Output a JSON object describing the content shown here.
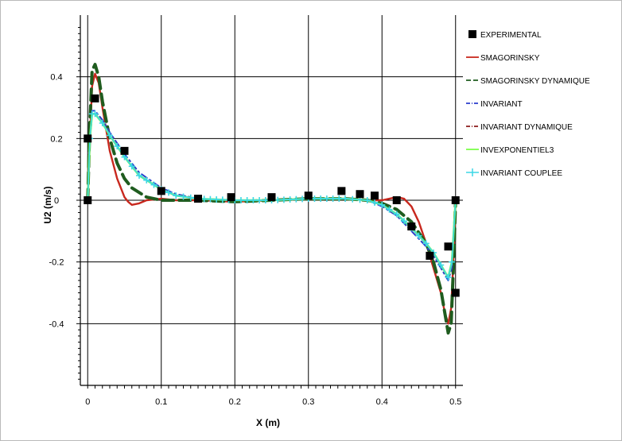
{
  "chart_data": {
    "type": "line",
    "xlabel": "X (m)",
    "ylabel": "U2 (m/s)",
    "xlim": [
      -0.01,
      0.51
    ],
    "ylim": [
      -0.6,
      0.6
    ],
    "x_ticks": [
      0,
      0.1,
      0.2,
      0.3,
      0.4,
      0.5
    ],
    "x_tick_labels": [
      "0",
      "0.1",
      "0.2",
      "0.3",
      "0.4",
      "0.5"
    ],
    "y_ticks": [
      -0.4,
      -0.2,
      0,
      0.2,
      0.4
    ],
    "y_tick_labels": [
      "-0.4",
      "-0.2",
      "0",
      "0.2",
      "0.4"
    ],
    "grid": true,
    "legend_position": "right",
    "series": [
      {
        "name": "EXPERIMENTAL",
        "style": "square-markers",
        "color": "#000000",
        "x": [
          0,
          0,
          0.01,
          0.05,
          0.1,
          0.15,
          0.195,
          0.25,
          0.3,
          0.345,
          0.37,
          0.39,
          0.42,
          0.44,
          0.465,
          0.49,
          0.5,
          0.5
        ],
        "y": [
          0,
          0.2,
          0.33,
          0.16,
          0.03,
          0.005,
          0.01,
          0.01,
          0.015,
          0.03,
          0.02,
          0.015,
          0,
          -0.085,
          -0.18,
          -0.15,
          0,
          -0.3
        ]
      },
      {
        "name": "SMAGORINSKY",
        "style": "solid",
        "color": "#c8281e",
        "x": [
          0,
          0.003,
          0.006,
          0.01,
          0.015,
          0.02,
          0.03,
          0.04,
          0.05,
          0.055,
          0.06,
          0.07,
          0.08,
          0.1,
          0.12,
          0.15,
          0.2,
          0.25,
          0.3,
          0.35,
          0.38,
          0.4,
          0.42,
          0.43,
          0.44,
          0.45,
          0.46,
          0.47,
          0.48,
          0.485,
          0.49,
          0.494,
          0.497,
          0.5
        ],
        "y": [
          0,
          0.2,
          0.37,
          0.41,
          0.38,
          0.3,
          0.16,
          0.07,
          0.01,
          -0.005,
          -0.015,
          -0.01,
          0,
          0.005,
          0,
          0,
          -0.005,
          0,
          0.005,
          0.005,
          0,
          0,
          0.01,
          0.005,
          -0.02,
          -0.07,
          -0.14,
          -0.22,
          -0.3,
          -0.36,
          -0.4,
          -0.35,
          -0.2,
          0
        ]
      },
      {
        "name": "SMAGORINSKY DYNAMIQUE",
        "style": "dashed",
        "color": "#1f5c1f",
        "x": [
          0,
          0.003,
          0.006,
          0.01,
          0.015,
          0.02,
          0.03,
          0.04,
          0.05,
          0.06,
          0.08,
          0.1,
          0.12,
          0.15,
          0.2,
          0.25,
          0.3,
          0.35,
          0.38,
          0.4,
          0.42,
          0.44,
          0.46,
          0.47,
          0.48,
          0.485,
          0.49,
          0.494,
          0.497,
          0.5
        ],
        "y": [
          0,
          0.25,
          0.42,
          0.44,
          0.4,
          0.32,
          0.2,
          0.12,
          0.07,
          0.04,
          0.01,
          0,
          0,
          0,
          -0.005,
          0,
          0.005,
          0.005,
          0,
          -0.01,
          -0.03,
          -0.07,
          -0.14,
          -0.2,
          -0.29,
          -0.36,
          -0.43,
          -0.4,
          -0.22,
          0
        ]
      },
      {
        "name": "INVARIANT",
        "style": "dash-dot",
        "color": "#2a3dcc",
        "x": [
          0,
          0.003,
          0.006,
          0.01,
          0.02,
          0.03,
          0.05,
          0.07,
          0.1,
          0.12,
          0.15,
          0.2,
          0.25,
          0.3,
          0.35,
          0.38,
          0.4,
          0.42,
          0.44,
          0.46,
          0.47,
          0.48,
          0.49,
          0.495,
          0.5
        ],
        "y": [
          0,
          0.2,
          0.29,
          0.29,
          0.26,
          0.22,
          0.15,
          0.09,
          0.04,
          0.02,
          0.005,
          0,
          0,
          0.005,
          0.005,
          0,
          -0.02,
          -0.05,
          -0.1,
          -0.15,
          -0.18,
          -0.22,
          -0.26,
          -0.22,
          0
        ]
      },
      {
        "name": "INVARIANT DYNAMIQUE",
        "style": "dash-dot",
        "color": "#8b1a1a",
        "x": [
          0,
          0.003,
          0.006,
          0.01,
          0.02,
          0.03,
          0.05,
          0.07,
          0.1,
          0.12,
          0.15,
          0.2,
          0.25,
          0.3,
          0.35,
          0.38,
          0.4,
          0.42,
          0.44,
          0.46,
          0.47,
          0.48,
          0.49,
          0.495,
          0.5
        ],
        "y": [
          0,
          0.19,
          0.28,
          0.28,
          0.25,
          0.21,
          0.14,
          0.08,
          0.035,
          0.015,
          0.005,
          0,
          0,
          0.005,
          0.005,
          0,
          -0.015,
          -0.045,
          -0.09,
          -0.14,
          -0.17,
          -0.21,
          -0.25,
          -0.2,
          0
        ]
      },
      {
        "name": "INVEXPONENTIEL3",
        "style": "solid",
        "color": "#7cff4a",
        "x": [
          0,
          0.003,
          0.006,
          0.01,
          0.02,
          0.03,
          0.05,
          0.07,
          0.1,
          0.12,
          0.15,
          0.2,
          0.25,
          0.3,
          0.35,
          0.38,
          0.4,
          0.42,
          0.44,
          0.46,
          0.47,
          0.48,
          0.49,
          0.495,
          0.5
        ],
        "y": [
          0,
          0.2,
          0.28,
          0.28,
          0.25,
          0.21,
          0.14,
          0.08,
          0.035,
          0.015,
          0.005,
          0,
          0,
          0.005,
          0.005,
          0,
          -0.015,
          -0.045,
          -0.09,
          -0.14,
          -0.17,
          -0.21,
          -0.25,
          -0.2,
          0
        ]
      },
      {
        "name": "INVARIANT COUPLEE",
        "style": "cross-markers",
        "color": "#3cd7e6",
        "x": [
          0,
          0.003,
          0.006,
          0.01,
          0.02,
          0.03,
          0.05,
          0.07,
          0.1,
          0.12,
          0.15,
          0.2,
          0.25,
          0.3,
          0.35,
          0.38,
          0.4,
          0.42,
          0.44,
          0.46,
          0.47,
          0.48,
          0.49,
          0.495,
          0.5
        ],
        "y": [
          0,
          0.2,
          0.28,
          0.28,
          0.25,
          0.21,
          0.14,
          0.08,
          0.035,
          0.015,
          0.005,
          0,
          0,
          0.005,
          0.005,
          0,
          -0.015,
          -0.045,
          -0.09,
          -0.14,
          -0.17,
          -0.21,
          -0.25,
          -0.2,
          0
        ]
      }
    ]
  }
}
